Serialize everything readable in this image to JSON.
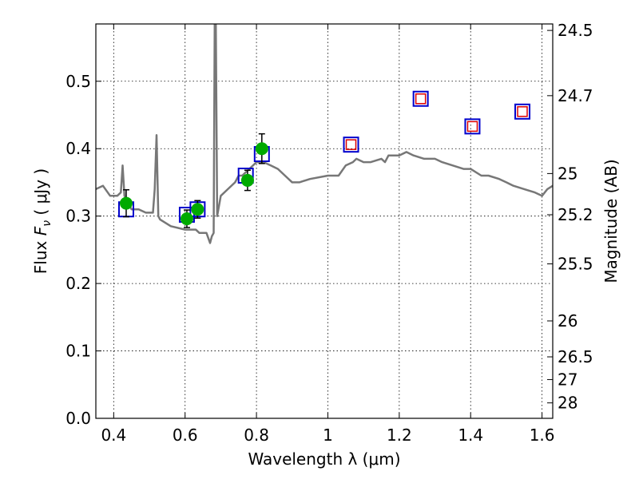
{
  "chart_data": {
    "type": "scatter",
    "xlabel": "Wavelength  λ (μm)",
    "ylabel": "Flux  F_ν  ( μJy )",
    "ylabel_right": "Magnitude (AB)",
    "xlim": [
      0.35,
      1.63
    ],
    "ylim": [
      0.0,
      0.585
    ],
    "grid": true,
    "x_ticks": [
      {
        "value": 0.4,
        "label": "0.4"
      },
      {
        "value": 0.6,
        "label": "0.6"
      },
      {
        "value": 0.8,
        "label": "0.8"
      },
      {
        "value": 1.0,
        "label": "1"
      },
      {
        "value": 1.2,
        "label": "1.2"
      },
      {
        "value": 1.4,
        "label": "1.4"
      },
      {
        "value": 1.6,
        "label": "1.6"
      }
    ],
    "y_ticks": [
      {
        "value": 0.0,
        "label": "0.0"
      },
      {
        "value": 0.1,
        "label": "0.1"
      },
      {
        "value": 0.2,
        "label": "0.2"
      },
      {
        "value": 0.3,
        "label": "0.3"
      },
      {
        "value": 0.4,
        "label": "0.4"
      },
      {
        "value": 0.5,
        "label": "0.5"
      }
    ],
    "right_ticks": [
      {
        "label": "24.5",
        "flux": 0.5754
      },
      {
        "label": "24.7",
        "flux": 0.4786
      },
      {
        "label": "25",
        "flux": 0.3631
      },
      {
        "label": "25.2",
        "flux": 0.302
      },
      {
        "label": "25.5",
        "flux": 0.2291
      },
      {
        "label": "26",
        "flux": 0.1445
      },
      {
        "label": "26.5",
        "flux": 0.0912
      },
      {
        "label": "27",
        "flux": 0.0575
      },
      {
        "label": "28",
        "flux": 0.0229
      }
    ],
    "series": [
      {
        "kind": "model_spectrum",
        "color": "#777777",
        "x": [
          0.35,
          0.37,
          0.39,
          0.41,
          0.42,
          0.425,
          0.43,
          0.45,
          0.47,
          0.49,
          0.51,
          0.515,
          0.52,
          0.525,
          0.53,
          0.56,
          0.6,
          0.63,
          0.64,
          0.66,
          0.67,
          0.675,
          0.68,
          0.683,
          0.686,
          0.69,
          0.7,
          0.72,
          0.74,
          0.75,
          0.76,
          0.78,
          0.8,
          0.82,
          0.84,
          0.86,
          0.88,
          0.9,
          0.92,
          0.95,
          1.0,
          1.03,
          1.05,
          1.07,
          1.08,
          1.1,
          1.12,
          1.15,
          1.16,
          1.17,
          1.2,
          1.22,
          1.24,
          1.27,
          1.3,
          1.32,
          1.35,
          1.38,
          1.4,
          1.43,
          1.45,
          1.48,
          1.5,
          1.52,
          1.55,
          1.58,
          1.6,
          1.615,
          1.63
        ],
        "y": [
          0.34,
          0.345,
          0.33,
          0.33,
          0.335,
          0.375,
          0.33,
          0.31,
          0.31,
          0.305,
          0.305,
          0.34,
          0.42,
          0.3,
          0.295,
          0.285,
          0.28,
          0.28,
          0.275,
          0.275,
          0.26,
          0.27,
          0.275,
          0.585,
          0.585,
          0.3,
          0.33,
          0.34,
          0.35,
          0.36,
          0.36,
          0.37,
          0.38,
          0.38,
          0.375,
          0.37,
          0.36,
          0.35,
          0.35,
          0.355,
          0.36,
          0.36,
          0.375,
          0.38,
          0.385,
          0.38,
          0.38,
          0.385,
          0.38,
          0.39,
          0.39,
          0.395,
          0.39,
          0.385,
          0.385,
          0.38,
          0.375,
          0.37,
          0.37,
          0.36,
          0.36,
          0.355,
          0.35,
          0.345,
          0.34,
          0.335,
          0.33,
          0.34,
          0.345
        ]
      },
      {
        "kind": "model_photometry",
        "marker": "open-square",
        "color": "#0000cc",
        "x": [
          0.435,
          0.605,
          0.635,
          0.77,
          0.815,
          1.065,
          1.26,
          1.405,
          1.545
        ],
        "y": [
          0.31,
          0.302,
          0.31,
          0.36,
          0.392,
          0.406,
          0.474,
          0.433,
          0.455
        ]
      },
      {
        "kind": "observed_photometry",
        "marker": "filled-circle",
        "color": "#00aa00",
        "x": [
          0.435,
          0.605,
          0.635,
          0.775,
          0.815
        ],
        "y": [
          0.319,
          0.296,
          0.31,
          0.353,
          0.4
        ],
        "yerr": [
          0.02,
          0.013,
          0.013,
          0.015,
          0.022
        ]
      },
      {
        "kind": "upper_limits",
        "marker": "open-square",
        "color": "#dd0000",
        "x": [
          1.065,
          1.26,
          1.405,
          1.545
        ],
        "y": [
          0.406,
          0.474,
          0.433,
          0.455
        ]
      }
    ]
  }
}
